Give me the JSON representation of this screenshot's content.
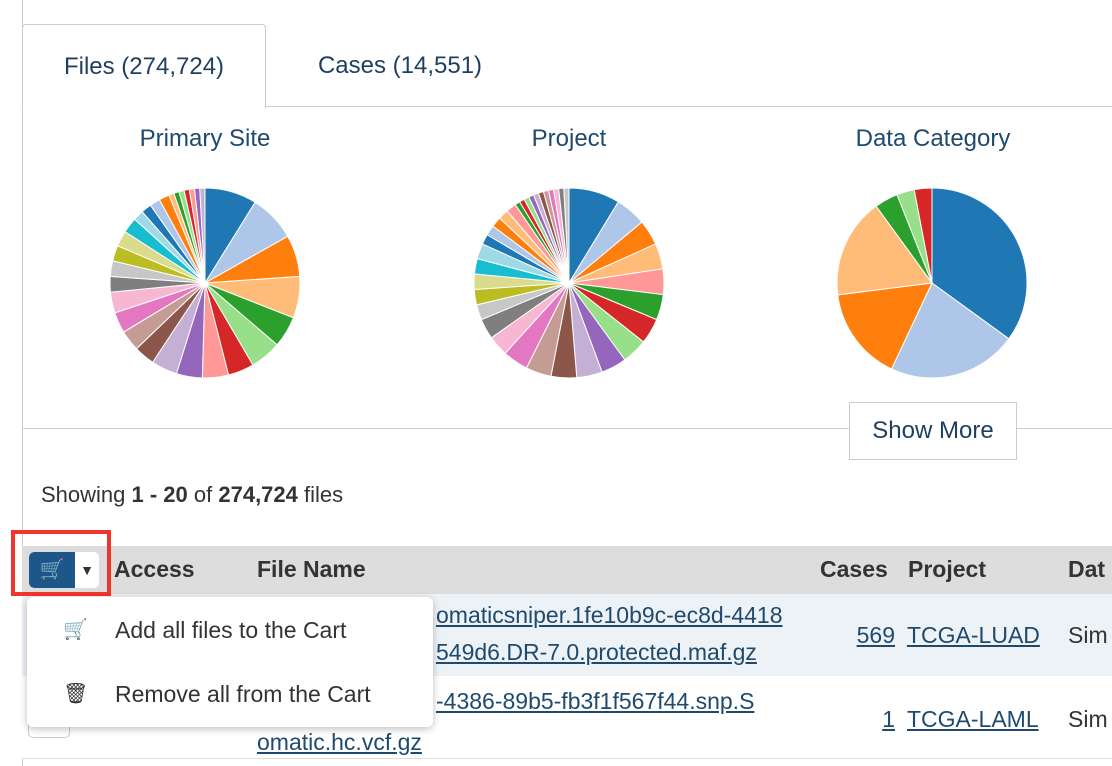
{
  "tabs": [
    {
      "label": "Files (274,724)"
    },
    {
      "label": "Cases (14,551)"
    }
  ],
  "charts": [
    {
      "title": "Primary Site",
      "values": [
        10,
        9,
        8,
        8,
        6,
        6,
        5,
        5,
        5,
        5,
        4,
        4,
        4,
        4,
        3,
        3,
        3,
        3,
        3,
        2,
        2,
        2,
        2,
        1,
        1,
        1,
        1,
        1,
        1,
        1
      ],
      "colors": [
        "#1f77b4",
        "#aec7e8",
        "#ff7f0e",
        "#ffbb78",
        "#2ca02c",
        "#98df8a",
        "#d62728",
        "#ff9896",
        "#9467bd",
        "#c5b0d5",
        "#8c564b",
        "#c49c94",
        "#e377c2",
        "#f7b6d2",
        "#7f7f7f",
        "#c7c7c7",
        "#bcbd22",
        "#dbdb8d",
        "#17becf",
        "#9edae5"
      ]
    },
    {
      "title": "Project",
      "values": [
        10,
        6,
        5,
        5,
        5,
        5,
        5,
        5,
        5,
        5,
        5,
        5,
        5,
        4,
        4,
        3,
        3,
        3,
        3,
        3,
        2,
        2,
        2,
        2,
        2,
        1,
        1,
        1,
        1,
        1,
        1,
        1,
        1,
        1,
        1,
        1
      ],
      "colors": [
        "#1f77b4",
        "#aec7e8",
        "#ff7f0e",
        "#ffbb78",
        "#ff9896",
        "#2ca02c",
        "#d62728",
        "#98df8a",
        "#9467bd",
        "#c5b0d5",
        "#8c564b",
        "#c49c94",
        "#e377c2",
        "#f7b6d2",
        "#7f7f7f",
        "#c7c7c7",
        "#bcbd22",
        "#dbdb8d",
        "#17becf",
        "#9edae5"
      ]
    },
    {
      "title": "Data Category",
      "values": [
        35,
        22,
        16,
        17,
        4,
        3,
        3
      ],
      "colors": [
        "#1f77b4",
        "#aec7e8",
        "#ff7f0e",
        "#ffbb78",
        "#2ca02c",
        "#98df8a",
        "#d62728"
      ]
    }
  ],
  "show_more": "Show More",
  "showing": {
    "prefix": "Showing ",
    "range": "1 - 20",
    "of": " of ",
    "total": "274,724",
    "suffix": " files"
  },
  "table": {
    "headers": {
      "access": "Access",
      "file_name": "File Name",
      "cases": "Cases",
      "project": "Project",
      "data": "Dat"
    },
    "rows": [
      {
        "file_line1": "omaticsniper.1fe10b9c-ec8d-4418",
        "file_line2": "549d6.DR-7.0.protected.maf.gz",
        "cases": "569",
        "project": "TCGA-LUAD",
        "data": "Sim"
      },
      {
        "file_line1": "-4386-89b5-fb3f1f567f44.snp.S",
        "file_line2": "omatic.hc.vcf.gz",
        "cases": "1",
        "project": "TCGA-LAML",
        "data": "Sim"
      }
    ]
  },
  "menu": {
    "items": [
      {
        "label": "Add all files to the Cart",
        "icon": "cart-icon"
      },
      {
        "label": "Remove all from the Cart",
        "icon": "trash-icon"
      }
    ]
  }
}
